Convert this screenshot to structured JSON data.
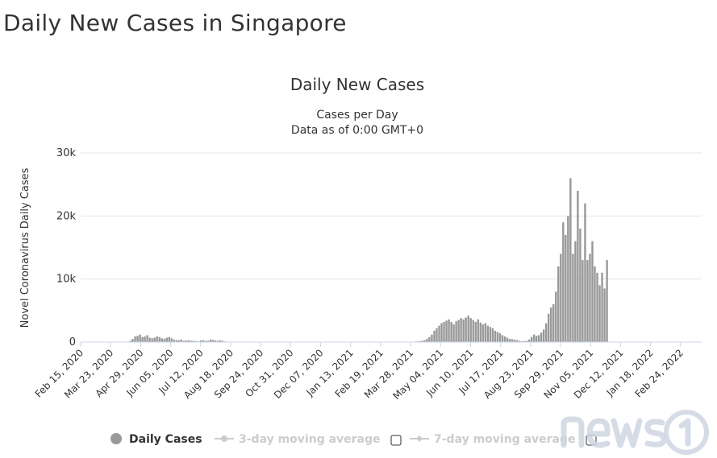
{
  "page": {
    "title": "Daily New Cases in Singapore"
  },
  "colors": {
    "bar": "#999999",
    "grid": "#e6e6e6",
    "axis": "#ccd6eb",
    "inactive": "#cccccc",
    "text": "#333333"
  },
  "chart_data": {
    "type": "bar",
    "title": "Daily New Cases",
    "subtitle": [
      "Cases per Day",
      "Data as of 0:00 GMT+0"
    ],
    "ylabel": "Novel Coronavirus Daily Cases",
    "ylim": [
      0,
      30000
    ],
    "yticks": [
      {
        "value": 0,
        "label": "0"
      },
      {
        "value": 10000,
        "label": "10k"
      },
      {
        "value": 20000,
        "label": "20k"
      },
      {
        "value": 30000,
        "label": "30k"
      }
    ],
    "x_start": "2020-02-15",
    "x_end": "2022-03-22",
    "xticks": [
      {
        "date": "2020-02-15",
        "label": "Feb 15, 2020"
      },
      {
        "date": "2020-03-23",
        "label": "Mar 23, 2020"
      },
      {
        "date": "2020-04-29",
        "label": "Apr 29, 2020"
      },
      {
        "date": "2020-06-05",
        "label": "Jun 05, 2020"
      },
      {
        "date": "2020-07-12",
        "label": "Jul 12, 2020"
      },
      {
        "date": "2020-08-18",
        "label": "Aug 18, 2020"
      },
      {
        "date": "2020-09-24",
        "label": "Sep 24, 2020"
      },
      {
        "date": "2020-10-31",
        "label": "Oct 31, 2020"
      },
      {
        "date": "2020-12-07",
        "label": "Dec 07, 2020"
      },
      {
        "date": "2021-01-13",
        "label": "Jan 13, 2021"
      },
      {
        "date": "2021-02-19",
        "label": "Feb 19, 2021"
      },
      {
        "date": "2021-03-28",
        "label": "Mar 28, 2021"
      },
      {
        "date": "2021-05-04",
        "label": "May 04, 2021"
      },
      {
        "date": "2021-06-10",
        "label": "Jun 10, 2021"
      },
      {
        "date": "2021-07-17",
        "label": "Jul 17, 2021"
      },
      {
        "date": "2021-08-23",
        "label": "Aug 23, 2021"
      },
      {
        "date": "2021-09-29",
        "label": "Sep 29, 2021"
      },
      {
        "date": "2021-11-05",
        "label": "Nov 05, 2021"
      },
      {
        "date": "2021-12-12",
        "label": "Dec 12, 2021"
      },
      {
        "date": "2022-01-18",
        "label": "Jan 18, 2022"
      },
      {
        "date": "2022-02-24",
        "label": "Feb 24, 2022"
      }
    ],
    "series": [
      {
        "name": "Daily Cases",
        "interval_days": 3,
        "values": [
          0,
          0,
          0,
          0,
          0,
          0,
          0,
          0,
          0,
          0,
          0,
          0,
          0,
          0,
          0,
          0,
          0,
          0,
          20,
          40,
          200,
          500,
          900,
          1000,
          1200,
          800,
          900,
          1100,
          700,
          600,
          700,
          900,
          800,
          600,
          500,
          700,
          800,
          600,
          400,
          300,
          300,
          400,
          200,
          250,
          300,
          200,
          200,
          150,
          100,
          250,
          300,
          200,
          200,
          400,
          350,
          250,
          200,
          300,
          200,
          100,
          50,
          50,
          30,
          20,
          20,
          15,
          15,
          10,
          10,
          8,
          8,
          10,
          12,
          10,
          8,
          10,
          12,
          15,
          12,
          10,
          8,
          6,
          5,
          5,
          4,
          4,
          3,
          3,
          3,
          4,
          5,
          3,
          3,
          2,
          3,
          2,
          2,
          2,
          3,
          4,
          5,
          6,
          5,
          8,
          10,
          12,
          15,
          20,
          25,
          30,
          25,
          20,
          15,
          12,
          10,
          12,
          15,
          20,
          25,
          20,
          15,
          10,
          8,
          8,
          10,
          8,
          6,
          5,
          5,
          5,
          8,
          10,
          15,
          20,
          30,
          40,
          60,
          80,
          100,
          150,
          200,
          300,
          500,
          800,
          1200,
          1800,
          2200,
          2600,
          3000,
          3200,
          3400,
          3600,
          3200,
          2800,
          3300,
          3500,
          3800,
          3600,
          3900,
          4200,
          3800,
          3500,
          3200,
          3600,
          3100,
          2800,
          3000,
          2600,
          2400,
          2200,
          1800,
          1600,
          1400,
          1100,
          900,
          700,
          500,
          450,
          400,
          300,
          200,
          150,
          150,
          200,
          400,
          800,
          1200,
          1000,
          1100,
          1500,
          2000,
          3000,
          4500,
          5500,
          6000,
          8000,
          12000,
          14000,
          19000,
          17000,
          20000,
          26000,
          14000,
          16000,
          24000,
          18000,
          13000,
          22000,
          13000,
          14000,
          16000,
          12000,
          11000,
          9000,
          11000,
          8500,
          13000
        ]
      }
    ],
    "legend": [
      {
        "label": "Daily Cases",
        "active": true
      },
      {
        "label": "3-day moving average",
        "active": false
      },
      {
        "label": "7-day moving average",
        "active": false
      }
    ]
  }
}
